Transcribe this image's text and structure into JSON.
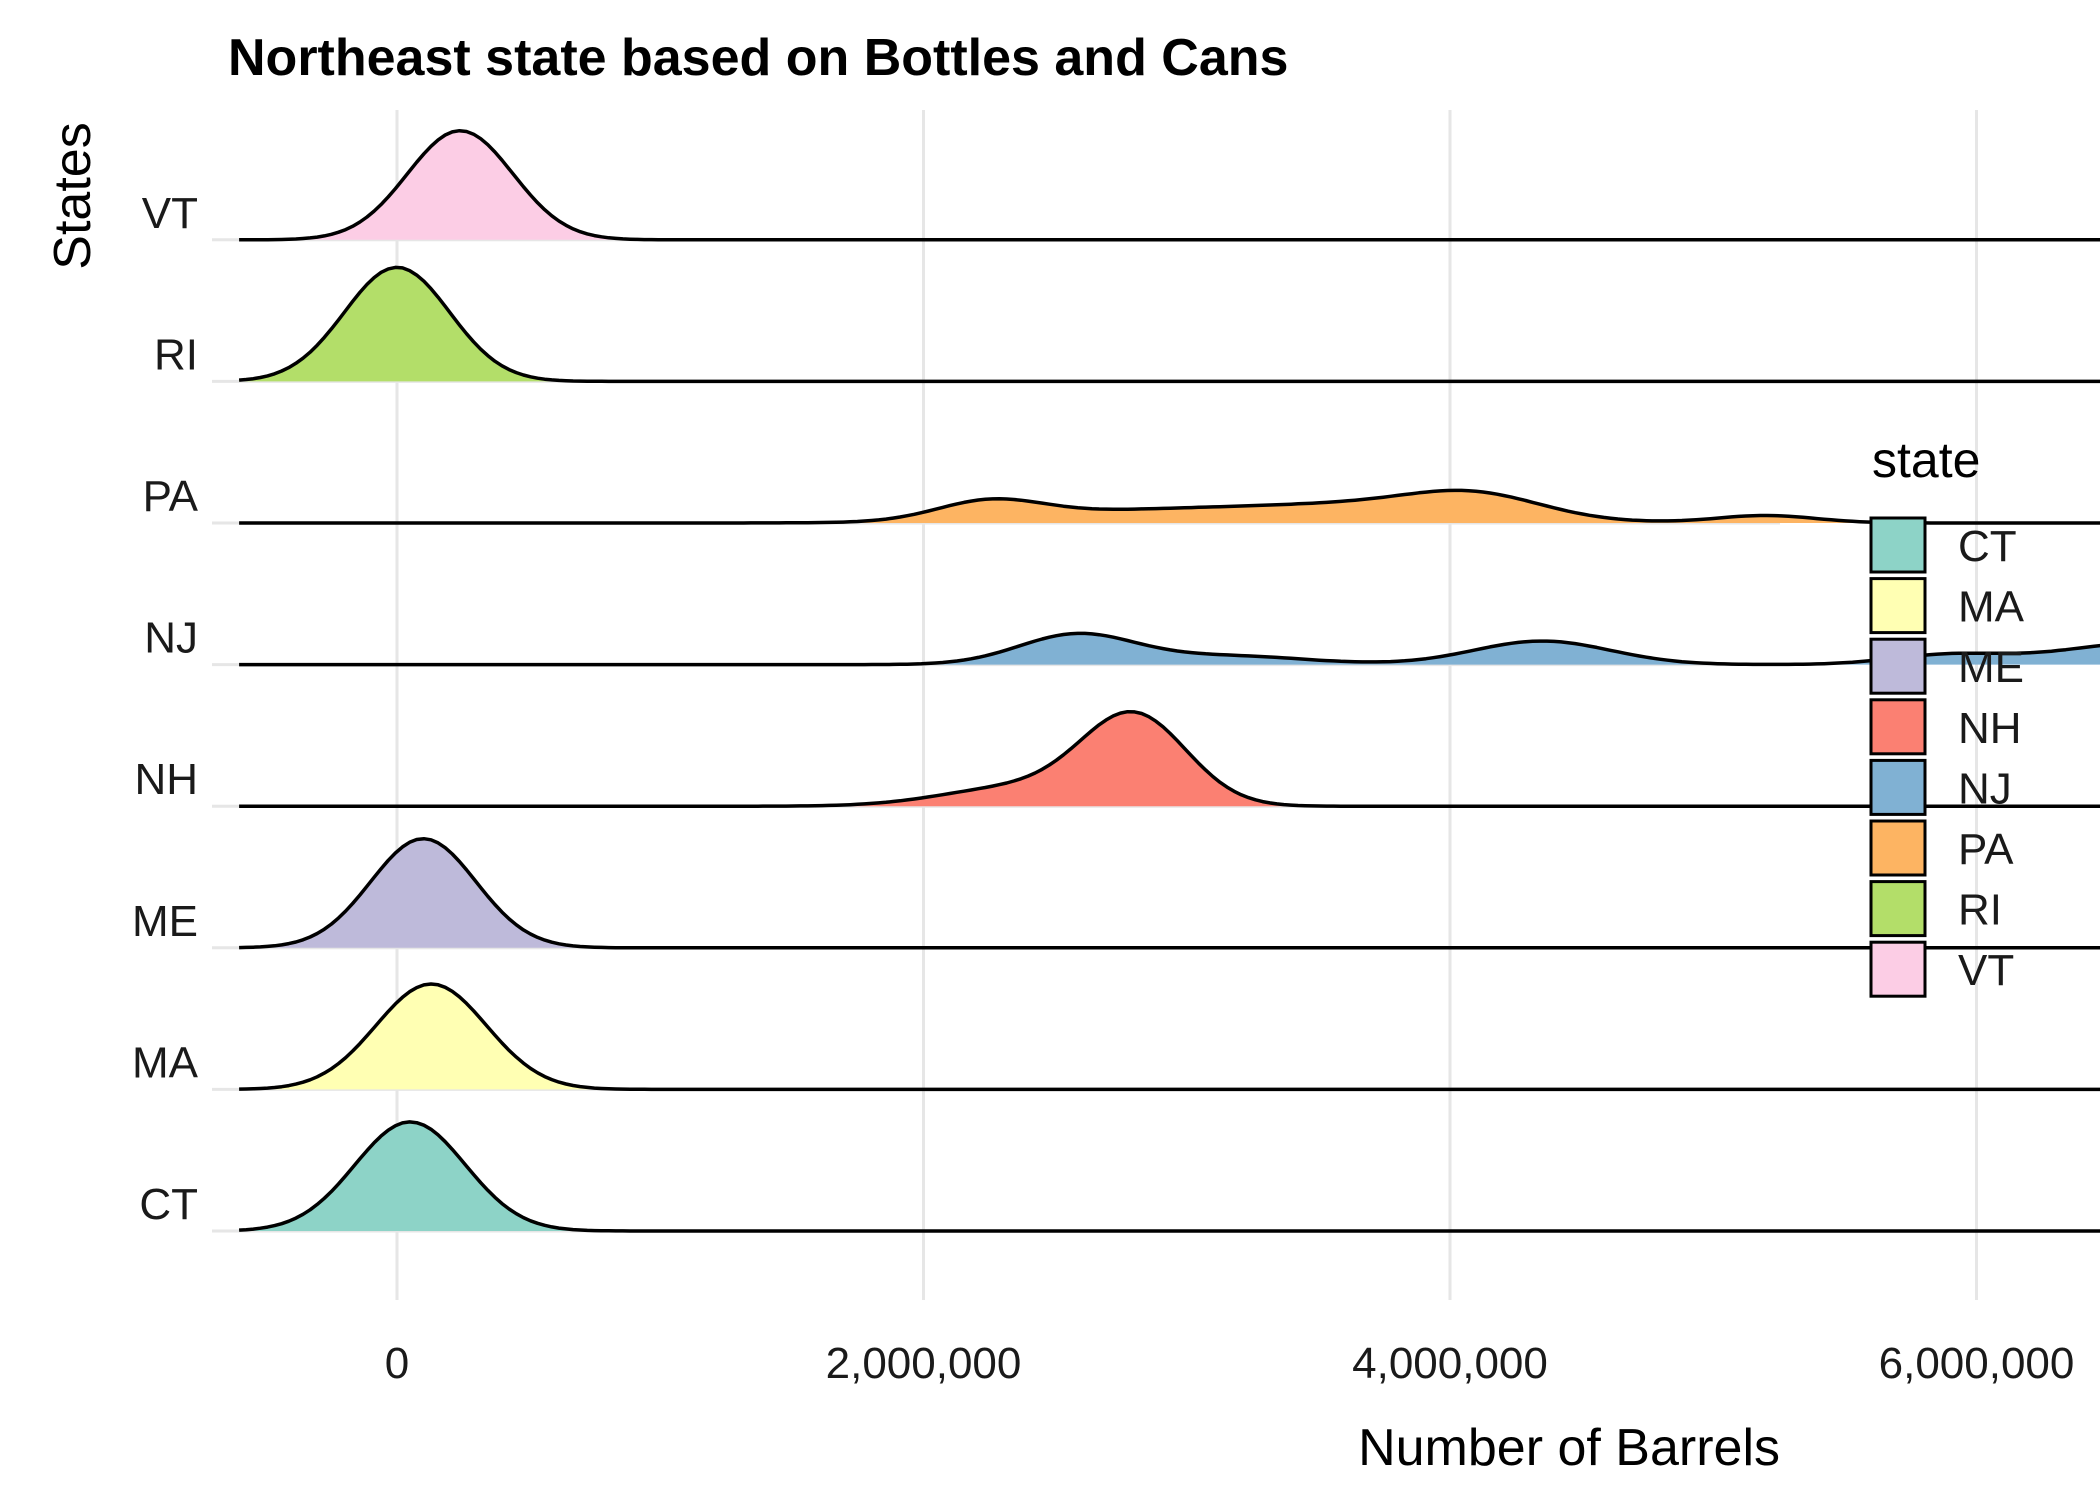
{
  "chart_data": {
    "type": "area",
    "subtype": "ridgeline",
    "title": "Northeast state based on Bottles and Cans",
    "xlabel": "Number of Barrels",
    "ylabel": "States",
    "xlim": [
      -600000,
      7500000
    ],
    "x_ticks": [
      0,
      2000000,
      4000000,
      6000000
    ],
    "x_tick_labels": [
      "0",
      "2,000,000",
      "4,000,000",
      "6,000,000"
    ],
    "grid": true,
    "legend": {
      "title": "state",
      "position": "right"
    },
    "categories": [
      "CT",
      "MA",
      "ME",
      "NH",
      "NJ",
      "PA",
      "RI",
      "VT"
    ],
    "series": [
      {
        "name": "CT",
        "color": "#8DD3C7",
        "peaks": [
          {
            "x": 50000,
            "height": 0.88,
            "width": 210000
          }
        ]
      },
      {
        "name": "MA",
        "color": "#FFFFB3",
        "peaks": [
          {
            "x": 130000,
            "height": 0.85,
            "width": 210000
          }
        ]
      },
      {
        "name": "ME",
        "color": "#BEBADA",
        "peaks": [
          {
            "x": 100000,
            "height": 0.88,
            "width": 200000
          }
        ]
      },
      {
        "name": "NH",
        "color": "#FB8072",
        "peaks": [
          {
            "x": 2800000,
            "height": 0.72,
            "width": 200000
          },
          {
            "x": 2350000,
            "height": 0.15,
            "width": 280000
          }
        ]
      },
      {
        "name": "NJ",
        "color": "#80B1D3",
        "peaks": [
          {
            "x": 2580000,
            "height": 0.24,
            "width": 220000
          },
          {
            "x": 3150000,
            "height": 0.07,
            "width": 300000
          },
          {
            "x": 4350000,
            "height": 0.19,
            "width": 260000
          },
          {
            "x": 5900000,
            "height": 0.08,
            "width": 220000
          },
          {
            "x": 6620000,
            "height": 0.17,
            "width": 300000
          }
        ]
      },
      {
        "name": "PA",
        "color": "#FDB462",
        "peaks": [
          {
            "x": 2250000,
            "height": 0.15,
            "width": 200000
          },
          {
            "x": 2800000,
            "height": 0.09,
            "width": 450000
          },
          {
            "x": 3700000,
            "height": 0.14,
            "width": 450000
          },
          {
            "x": 4100000,
            "height": 0.16,
            "width": 250000
          },
          {
            "x": 5200000,
            "height": 0.06,
            "width": 190000
          }
        ]
      },
      {
        "name": "RI",
        "color": "#B3DE69",
        "peaks": [
          {
            "x": 0,
            "height": 0.92,
            "width": 200000
          }
        ]
      },
      {
        "name": "VT",
        "color": "#FCCDE5",
        "peaks": [
          {
            "x": 240000,
            "height": 0.88,
            "width": 200000
          }
        ]
      }
    ]
  }
}
